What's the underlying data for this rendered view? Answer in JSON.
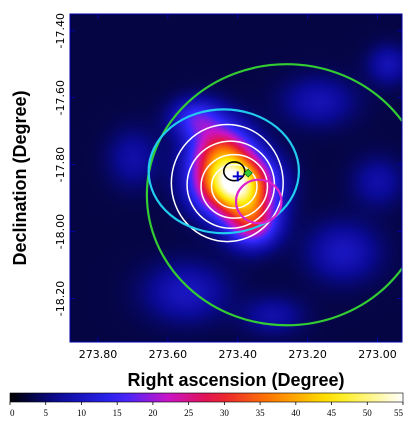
{
  "chart_data": {
    "type": "heatmap",
    "title": "",
    "xlabel": "Right ascension (Degree)",
    "ylabel": "Declination (Degree)",
    "xlim": [
      273.88,
      272.93
    ],
    "ylim": [
      -18.33,
      -17.35
    ],
    "x_ticks": [
      {
        "value": 273.8,
        "label": "273.80"
      },
      {
        "value": 273.6,
        "label": "273.60"
      },
      {
        "value": 273.4,
        "label": "273.40"
      },
      {
        "value": 273.2,
        "label": "273.20"
      },
      {
        "value": 273.0,
        "label": "273.00"
      }
    ],
    "y_ticks": [
      {
        "value": -17.4,
        "label": "-17.40"
      },
      {
        "value": -17.6,
        "label": "-17.60"
      },
      {
        "value": -17.8,
        "label": "-17.80"
      },
      {
        "value": -18.0,
        "label": "-18.00"
      },
      {
        "value": -18.2,
        "label": "-18.20"
      }
    ],
    "colorbar": {
      "range": [
        0,
        55
      ],
      "ticks": [
        {
          "value": 0,
          "label": "0"
        },
        {
          "value": 5,
          "label": "5"
        },
        {
          "value": 10,
          "label": "10"
        },
        {
          "value": 15,
          "label": "15"
        },
        {
          "value": 20,
          "label": "20"
        },
        {
          "value": 25,
          "label": "25"
        },
        {
          "value": 30,
          "label": "30"
        },
        {
          "value": 35,
          "label": "35"
        },
        {
          "value": 40,
          "label": "40"
        },
        {
          "value": 45,
          "label": "45"
        },
        {
          "value": 50,
          "label": "50"
        },
        {
          "value": 55,
          "label": "55"
        }
      ]
    },
    "hot_spots": [
      {
        "ra": 273.41,
        "dec": -17.86,
        "value": 50,
        "sigma_ra": 0.07,
        "sigma_dec": 0.06
      },
      {
        "ra": 273.45,
        "dec": -17.76,
        "value": 24,
        "sigma_ra": 0.06,
        "sigma_dec": 0.06
      },
      {
        "ra": 273.36,
        "dec": -17.97,
        "value": 22,
        "sigma_ra": 0.05,
        "sigma_dec": 0.05
      },
      {
        "ra": 273.52,
        "dec": -17.66,
        "value": 12,
        "sigma_ra": 0.05,
        "sigma_dec": 0.04
      },
      {
        "ra": 273.17,
        "dec": -17.61,
        "value": 6,
        "sigma_ra": 0.07,
        "sigma_dec": 0.05
      },
      {
        "ra": 273.1,
        "dec": -18.06,
        "value": 7,
        "sigma_ra": 0.07,
        "sigma_dec": 0.06
      },
      {
        "ra": 273.55,
        "dec": -18.18,
        "value": 7,
        "sigma_ra": 0.08,
        "sigma_dec": 0.06
      },
      {
        "ra": 272.97,
        "dec": -17.5,
        "value": 6,
        "sigma_ra": 0.04,
        "sigma_dec": 0.04
      },
      {
        "ra": 273.7,
        "dec": -17.78,
        "value": 5,
        "sigma_ra": 0.05,
        "sigma_dec": 0.06
      },
      {
        "ra": 273.3,
        "dec": -18.25,
        "value": 5,
        "sigma_ra": 0.06,
        "sigma_dec": 0.04
      },
      {
        "ra": 273.0,
        "dec": -17.85,
        "value": 5,
        "sigma_ra": 0.05,
        "sigma_dec": 0.05
      }
    ],
    "background_level": 3,
    "contours": [
      {
        "color": "#ffffff",
        "ra_c": 273.43,
        "dec_c": -17.855,
        "r_ra": 0.16,
        "r_dec": 0.175
      },
      {
        "color": "#ffffff",
        "ra_c": 273.42,
        "dec_c": -17.86,
        "r_ra": 0.125,
        "r_dec": 0.13
      },
      {
        "color": "#ffffff",
        "ra_c": 273.41,
        "dec_c": -17.865,
        "r_ra": 0.095,
        "r_dec": 0.095
      },
      {
        "color": "#ffffff",
        "ra_c": 273.41,
        "dec_c": -17.865,
        "r_ra": 0.065,
        "r_dec": 0.065
      }
    ],
    "circles": [
      {
        "name": "green",
        "color": "#33cc33",
        "ra": 273.26,
        "dec": -17.89,
        "r_ra": 0.4,
        "r_dec": 0.39
      },
      {
        "name": "cyan",
        "color": "#22ccee",
        "ra": 273.44,
        "dec": -17.82,
        "r_ra": 0.215,
        "r_dec": 0.185
      },
      {
        "name": "magenta",
        "color": "#dd22cc",
        "ra": 273.34,
        "dec": -17.91,
        "r_ra": 0.065,
        "r_dec": 0.065
      },
      {
        "name": "black",
        "color": "#000000",
        "ra": 273.41,
        "dec": -17.82,
        "r_ra": 0.03,
        "r_dec": 0.028
      }
    ],
    "markers": [
      {
        "name": "plus",
        "color": "#0000cc",
        "ra": 273.4,
        "dec": -17.835
      },
      {
        "name": "diamond",
        "color": "#33cc33",
        "ra": 273.37,
        "dec": -17.825
      }
    ]
  }
}
